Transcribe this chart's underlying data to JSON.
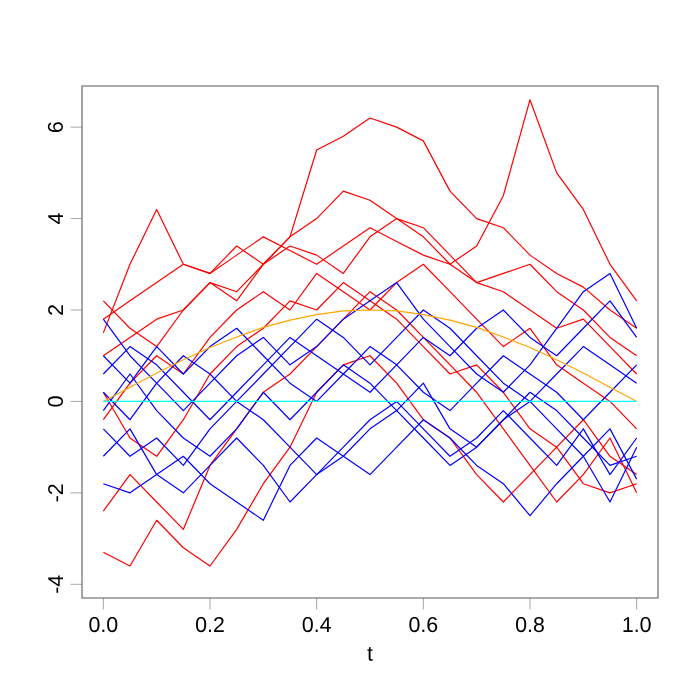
{
  "chart_data": {
    "type": "line",
    "xlabel": "t",
    "x": [
      0,
      0.05,
      0.1,
      0.15,
      0.2,
      0.25,
      0.3,
      0.35,
      0.4,
      0.45,
      0.5,
      0.55,
      0.6,
      0.65,
      0.7,
      0.75,
      0.8,
      0.85,
      0.9,
      0.95,
      1
    ],
    "series": [
      {
        "color": "#ff0000",
        "values": [
          1.8,
          2.2,
          2.6,
          3.0,
          2.8,
          3.2,
          3.6,
          3.3,
          3.0,
          3.4,
          3.8,
          3.5,
          3.2,
          3.0,
          3.4,
          4.5,
          6.6,
          5.0,
          4.2,
          3.0,
          2.2
        ]
      },
      {
        "color": "#ff0000",
        "values": [
          1.0,
          1.4,
          1.8,
          2.0,
          2.6,
          2.4,
          3.0,
          3.6,
          5.5,
          5.8,
          6.2,
          6.0,
          5.7,
          4.6,
          4.0,
          3.8,
          3.2,
          2.8,
          2.5,
          2.0,
          1.6
        ]
      },
      {
        "color": "#ff0000",
        "values": [
          1.5,
          3.0,
          4.2,
          3.0,
          2.8,
          3.4,
          3.0,
          3.6,
          4.0,
          4.6,
          4.4,
          4.0,
          3.6,
          3.0,
          2.6,
          2.8,
          3.0,
          2.4,
          2.0,
          1.4,
          1.0
        ]
      },
      {
        "color": "#ff0000",
        "values": [
          -3.3,
          -3.6,
          -2.6,
          -3.2,
          -3.6,
          -2.8,
          -1.8,
          -1.0,
          0.2,
          0.8,
          1.0,
          0.4,
          -0.4,
          -0.8,
          -1.6,
          -2.2,
          -1.6,
          -1.0,
          -1.8,
          -2.0,
          -1.8
        ]
      },
      {
        "color": "#ff0000",
        "values": [
          2.2,
          1.6,
          1.2,
          2.0,
          2.6,
          2.2,
          3.0,
          3.4,
          3.2,
          2.8,
          3.6,
          4.0,
          3.8,
          3.2,
          2.6,
          2.4,
          2.0,
          1.6,
          1.8,
          1.2,
          0.6
        ]
      },
      {
        "color": "#ff0000",
        "values": [
          0.2,
          -0.8,
          -1.2,
          -0.4,
          0.6,
          1.2,
          1.6,
          2.2,
          2.0,
          2.6,
          2.2,
          1.8,
          1.2,
          0.6,
          0.8,
          0.2,
          -0.6,
          -1.0,
          -0.4,
          -1.2,
          -1.6
        ]
      },
      {
        "color": "#ff0000",
        "values": [
          -0.4,
          0.4,
          1.0,
          0.6,
          1.4,
          2.0,
          2.4,
          2.0,
          2.8,
          2.4,
          2.0,
          2.6,
          3.0,
          2.4,
          1.8,
          1.2,
          1.6,
          0.8,
          0.4,
          0.0,
          -0.6
        ]
      },
      {
        "color": "#ff0000",
        "values": [
          -2.4,
          -1.6,
          -2.2,
          -2.8,
          -1.4,
          -0.6,
          0.2,
          0.6,
          1.2,
          1.8,
          2.4,
          2.0,
          1.4,
          0.8,
          0.2,
          -0.6,
          -1.4,
          -2.2,
          -1.6,
          -0.8,
          -2.0
        ]
      },
      {
        "color": "#0000ff",
        "values": [
          1.8,
          1.0,
          0.4,
          -0.2,
          0.4,
          1.0,
          1.4,
          0.8,
          1.2,
          1.8,
          2.2,
          2.6,
          1.8,
          1.2,
          0.6,
          0.2,
          0.8,
          1.6,
          2.4,
          2.8,
          1.6
        ]
      },
      {
        "color": "#0000ff",
        "values": [
          -1.8,
          -2.0,
          -1.6,
          -1.2,
          -1.8,
          -2.2,
          -2.6,
          -1.4,
          -0.8,
          -1.2,
          -1.6,
          -1.0,
          -0.4,
          -0.8,
          -1.4,
          -1.8,
          -2.5,
          -1.8,
          -1.2,
          -0.6,
          -1.7
        ]
      },
      {
        "color": "#0000ff",
        "values": [
          0.6,
          1.2,
          0.8,
          0.2,
          -0.4,
          0.2,
          0.8,
          1.4,
          1.0,
          0.6,
          1.2,
          0.8,
          0.2,
          -0.2,
          0.4,
          1.0,
          0.6,
          0.2,
          -0.4,
          0.2,
          0.8
        ]
      },
      {
        "color": "#0000ff",
        "values": [
          -0.6,
          -1.2,
          -0.8,
          -1.4,
          -0.6,
          0.0,
          -0.4,
          -1.0,
          -1.6,
          -1.2,
          -0.6,
          -0.2,
          -0.8,
          -1.4,
          -1.0,
          -0.4,
          0.2,
          -0.2,
          -0.8,
          -1.4,
          -1.2
        ]
      },
      {
        "color": "#0000ff",
        "values": [
          0.2,
          -0.4,
          0.4,
          1.0,
          0.6,
          0.0,
          0.6,
          1.2,
          1.8,
          1.4,
          0.8,
          1.4,
          2.0,
          1.6,
          1.0,
          0.4,
          0.0,
          0.6,
          1.2,
          0.8,
          0.4
        ]
      },
      {
        "color": "#0000ff",
        "values": [
          -0.2,
          0.6,
          -0.2,
          -0.8,
          -1.2,
          -0.6,
          0.2,
          -0.4,
          0.2,
          0.8,
          0.4,
          -0.2,
          0.4,
          -0.6,
          -1.0,
          -0.4,
          0.0,
          -0.6,
          -1.2,
          -2.2,
          -1.0
        ]
      },
      {
        "color": "#0000ff",
        "values": [
          1.0,
          0.4,
          1.2,
          0.6,
          1.2,
          1.6,
          1.0,
          0.4,
          0.0,
          0.6,
          0.2,
          0.8,
          1.4,
          1.0,
          1.6,
          2.0,
          1.4,
          1.0,
          1.6,
          2.2,
          1.4
        ]
      },
      {
        "color": "#0000ff",
        "values": [
          -1.2,
          -0.6,
          -1.6,
          -2.0,
          -1.4,
          -0.8,
          -1.4,
          -2.2,
          -1.6,
          -1.0,
          -0.4,
          0.0,
          -0.6,
          -1.2,
          -0.8,
          -0.2,
          -0.8,
          -1.4,
          -0.6,
          -1.6,
          -0.8
        ]
      },
      {
        "color": "#ffa500",
        "values": [
          0,
          0.31,
          0.62,
          0.91,
          1.18,
          1.41,
          1.62,
          1.78,
          1.9,
          1.98,
          2.0,
          1.98,
          1.9,
          1.78,
          1.62,
          1.41,
          1.18,
          0.91,
          0.62,
          0.31,
          0
        ]
      },
      {
        "color": "#00ffff",
        "values": [
          0,
          0,
          0,
          0,
          0,
          0,
          0,
          0,
          0,
          0,
          0,
          0,
          0,
          0,
          0,
          0,
          0,
          0,
          0,
          0,
          0
        ]
      }
    ],
    "xlim": [
      -0.04,
      1.04
    ],
    "ylim": [
      -4.3,
      6.9
    ],
    "xticks": [
      {
        "value": 0,
        "label": "0.0"
      },
      {
        "value": 0.2,
        "label": "0.2"
      },
      {
        "value": 0.4,
        "label": "0.4"
      },
      {
        "value": 0.6,
        "label": "0.6"
      },
      {
        "value": 0.8,
        "label": "0.8"
      },
      {
        "value": 1,
        "label": "1.0"
      }
    ],
    "yticks": [
      -4,
      -2,
      0,
      2,
      4,
      6
    ],
    "grid": false,
    "marker": "none",
    "line_style": "solid"
  }
}
